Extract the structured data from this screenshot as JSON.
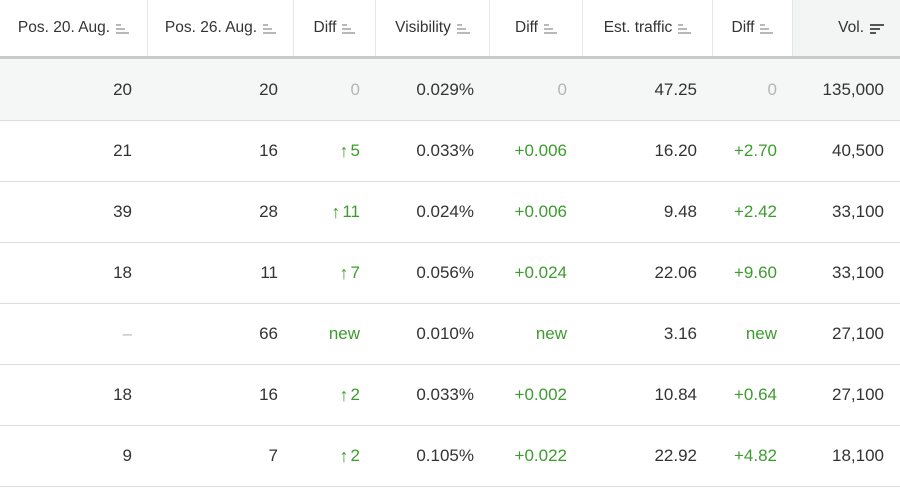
{
  "header": {
    "columns": [
      {
        "label": "Pos. 20. Aug.",
        "sort": "inactive"
      },
      {
        "label": "Pos. 26. Aug.",
        "sort": "inactive"
      },
      {
        "label": "Diff",
        "sort": "inactive"
      },
      {
        "label": "Visibility",
        "sort": "inactive"
      },
      {
        "label": "Diff",
        "sort": "inactive"
      },
      {
        "label": "Est. traffic",
        "sort": "inactive"
      },
      {
        "label": "Diff",
        "sort": "inactive"
      },
      {
        "label": "Vol.",
        "sort": "active-descending"
      }
    ]
  },
  "rows": [
    {
      "pos_old": "20",
      "pos_new": "20",
      "pos_diff": "0",
      "pos_diff_dir": "none",
      "visibility": "0.029%",
      "vis_diff": "0",
      "traffic": "47.25",
      "traffic_diff": "0",
      "volume": "135,000"
    },
    {
      "pos_old": "21",
      "pos_new": "16",
      "pos_diff": "5",
      "pos_diff_dir": "up",
      "visibility": "0.033%",
      "vis_diff": "+0.006",
      "traffic": "16.20",
      "traffic_diff": "+2.70",
      "volume": "40,500"
    },
    {
      "pos_old": "39",
      "pos_new": "28",
      "pos_diff": "11",
      "pos_diff_dir": "up",
      "visibility": "0.024%",
      "vis_diff": "+0.006",
      "traffic": "9.48",
      "traffic_diff": "+2.42",
      "volume": "33,100"
    },
    {
      "pos_old": "18",
      "pos_new": "11",
      "pos_diff": "7",
      "pos_diff_dir": "up",
      "visibility": "0.056%",
      "vis_diff": "+0.024",
      "traffic": "22.06",
      "traffic_diff": "+9.60",
      "volume": "33,100"
    },
    {
      "pos_old": "–",
      "pos_new": "66",
      "pos_diff": "new",
      "pos_diff_dir": "new",
      "visibility": "0.010%",
      "vis_diff": "new",
      "traffic": "3.16",
      "traffic_diff": "new",
      "volume": "27,100"
    },
    {
      "pos_old": "18",
      "pos_new": "16",
      "pos_diff": "2",
      "pos_diff_dir": "up",
      "visibility": "0.033%",
      "vis_diff": "+0.002",
      "traffic": "10.84",
      "traffic_diff": "+0.64",
      "volume": "27,100"
    },
    {
      "pos_old": "9",
      "pos_new": "7",
      "pos_diff": "2",
      "pos_diff_dir": "up",
      "visibility": "0.105%",
      "vis_diff": "+0.022",
      "traffic": "22.92",
      "traffic_diff": "+4.82",
      "volume": "18,100"
    }
  ],
  "colors": {
    "positive": "#3d9b2f",
    "muted": "#b5b5b5",
    "text": "#333333",
    "highlight_row": "#f5f6f6"
  },
  "icons": {
    "up": "arrow-up-icon",
    "sort_inactive": "sort-inactive-icon",
    "sort_active": "sort-descending-icon"
  }
}
